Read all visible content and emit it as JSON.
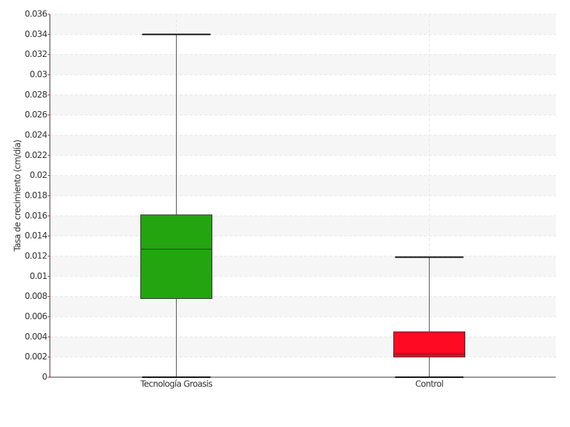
{
  "chart_data": {
    "type": "box",
    "y_label": "Tasa de crecimiento (cm/día)",
    "categories": [
      "Tecnología Groasis",
      "Control"
    ],
    "boxes": [
      {
        "min": 0,
        "q1": 0.0078,
        "median": 0.0127,
        "q3": 0.0161,
        "max": 0.034,
        "color": "#22a50f"
      },
      {
        "min": 0,
        "q1": 0.002,
        "median": 0.0023,
        "q3": 0.0045,
        "max": 0.0119,
        "color": "#ff0a23"
      }
    ],
    "ylim": [
      0,
      0.036
    ],
    "yticks": [
      0,
      0.002,
      0.004,
      0.006,
      0.008,
      0.01,
      0.012,
      0.014,
      0.016,
      0.018,
      0.02,
      0.022,
      0.024,
      0.026,
      0.028,
      0.03,
      0.032,
      0.034,
      0.036
    ],
    "grid": true
  }
}
